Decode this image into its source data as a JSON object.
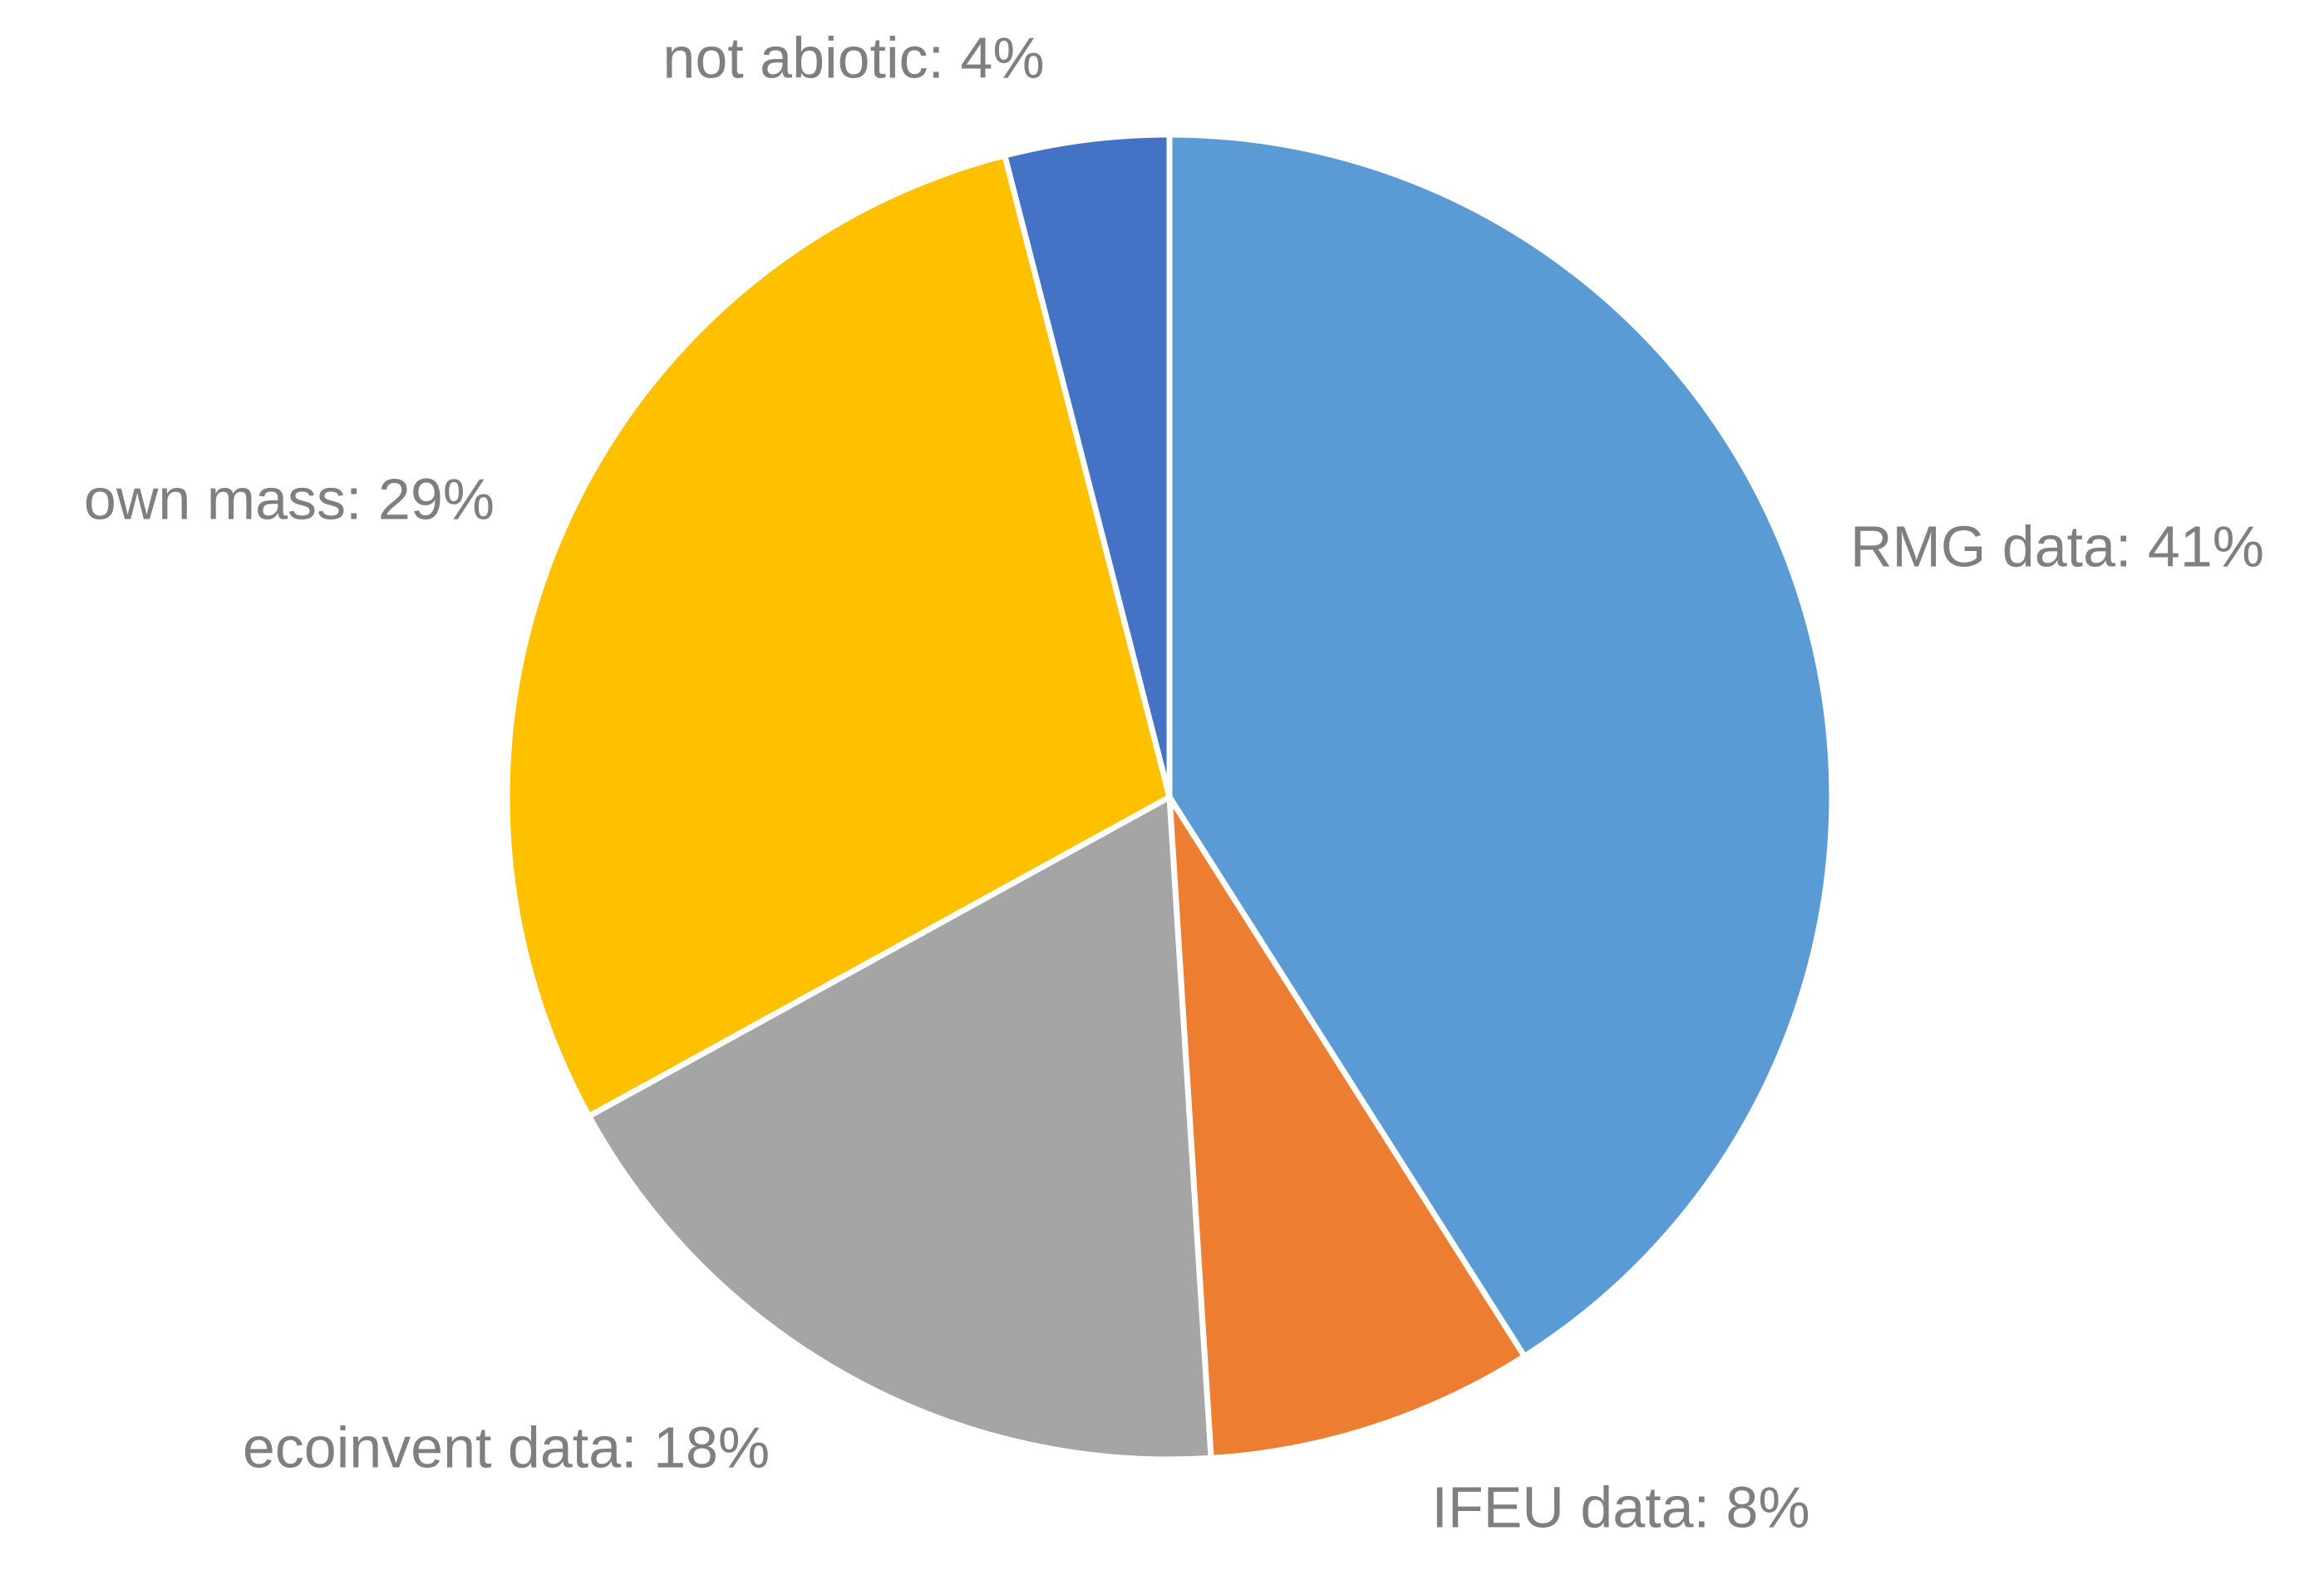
{
  "chart_data": {
    "type": "pie",
    "values": [
      41,
      8,
      18,
      29,
      4
    ],
    "value_labels": [
      "RMG data: 41%",
      "IFEU data: 8%",
      "ecoinvent data: 18%",
      "own mass: 29%",
      "not abiotic: 4%"
    ],
    "colors": [
      "#5b9bd5",
      "#ed7d31",
      "#a5a5a5",
      "#ffc000",
      "#4472c4"
    ]
  }
}
